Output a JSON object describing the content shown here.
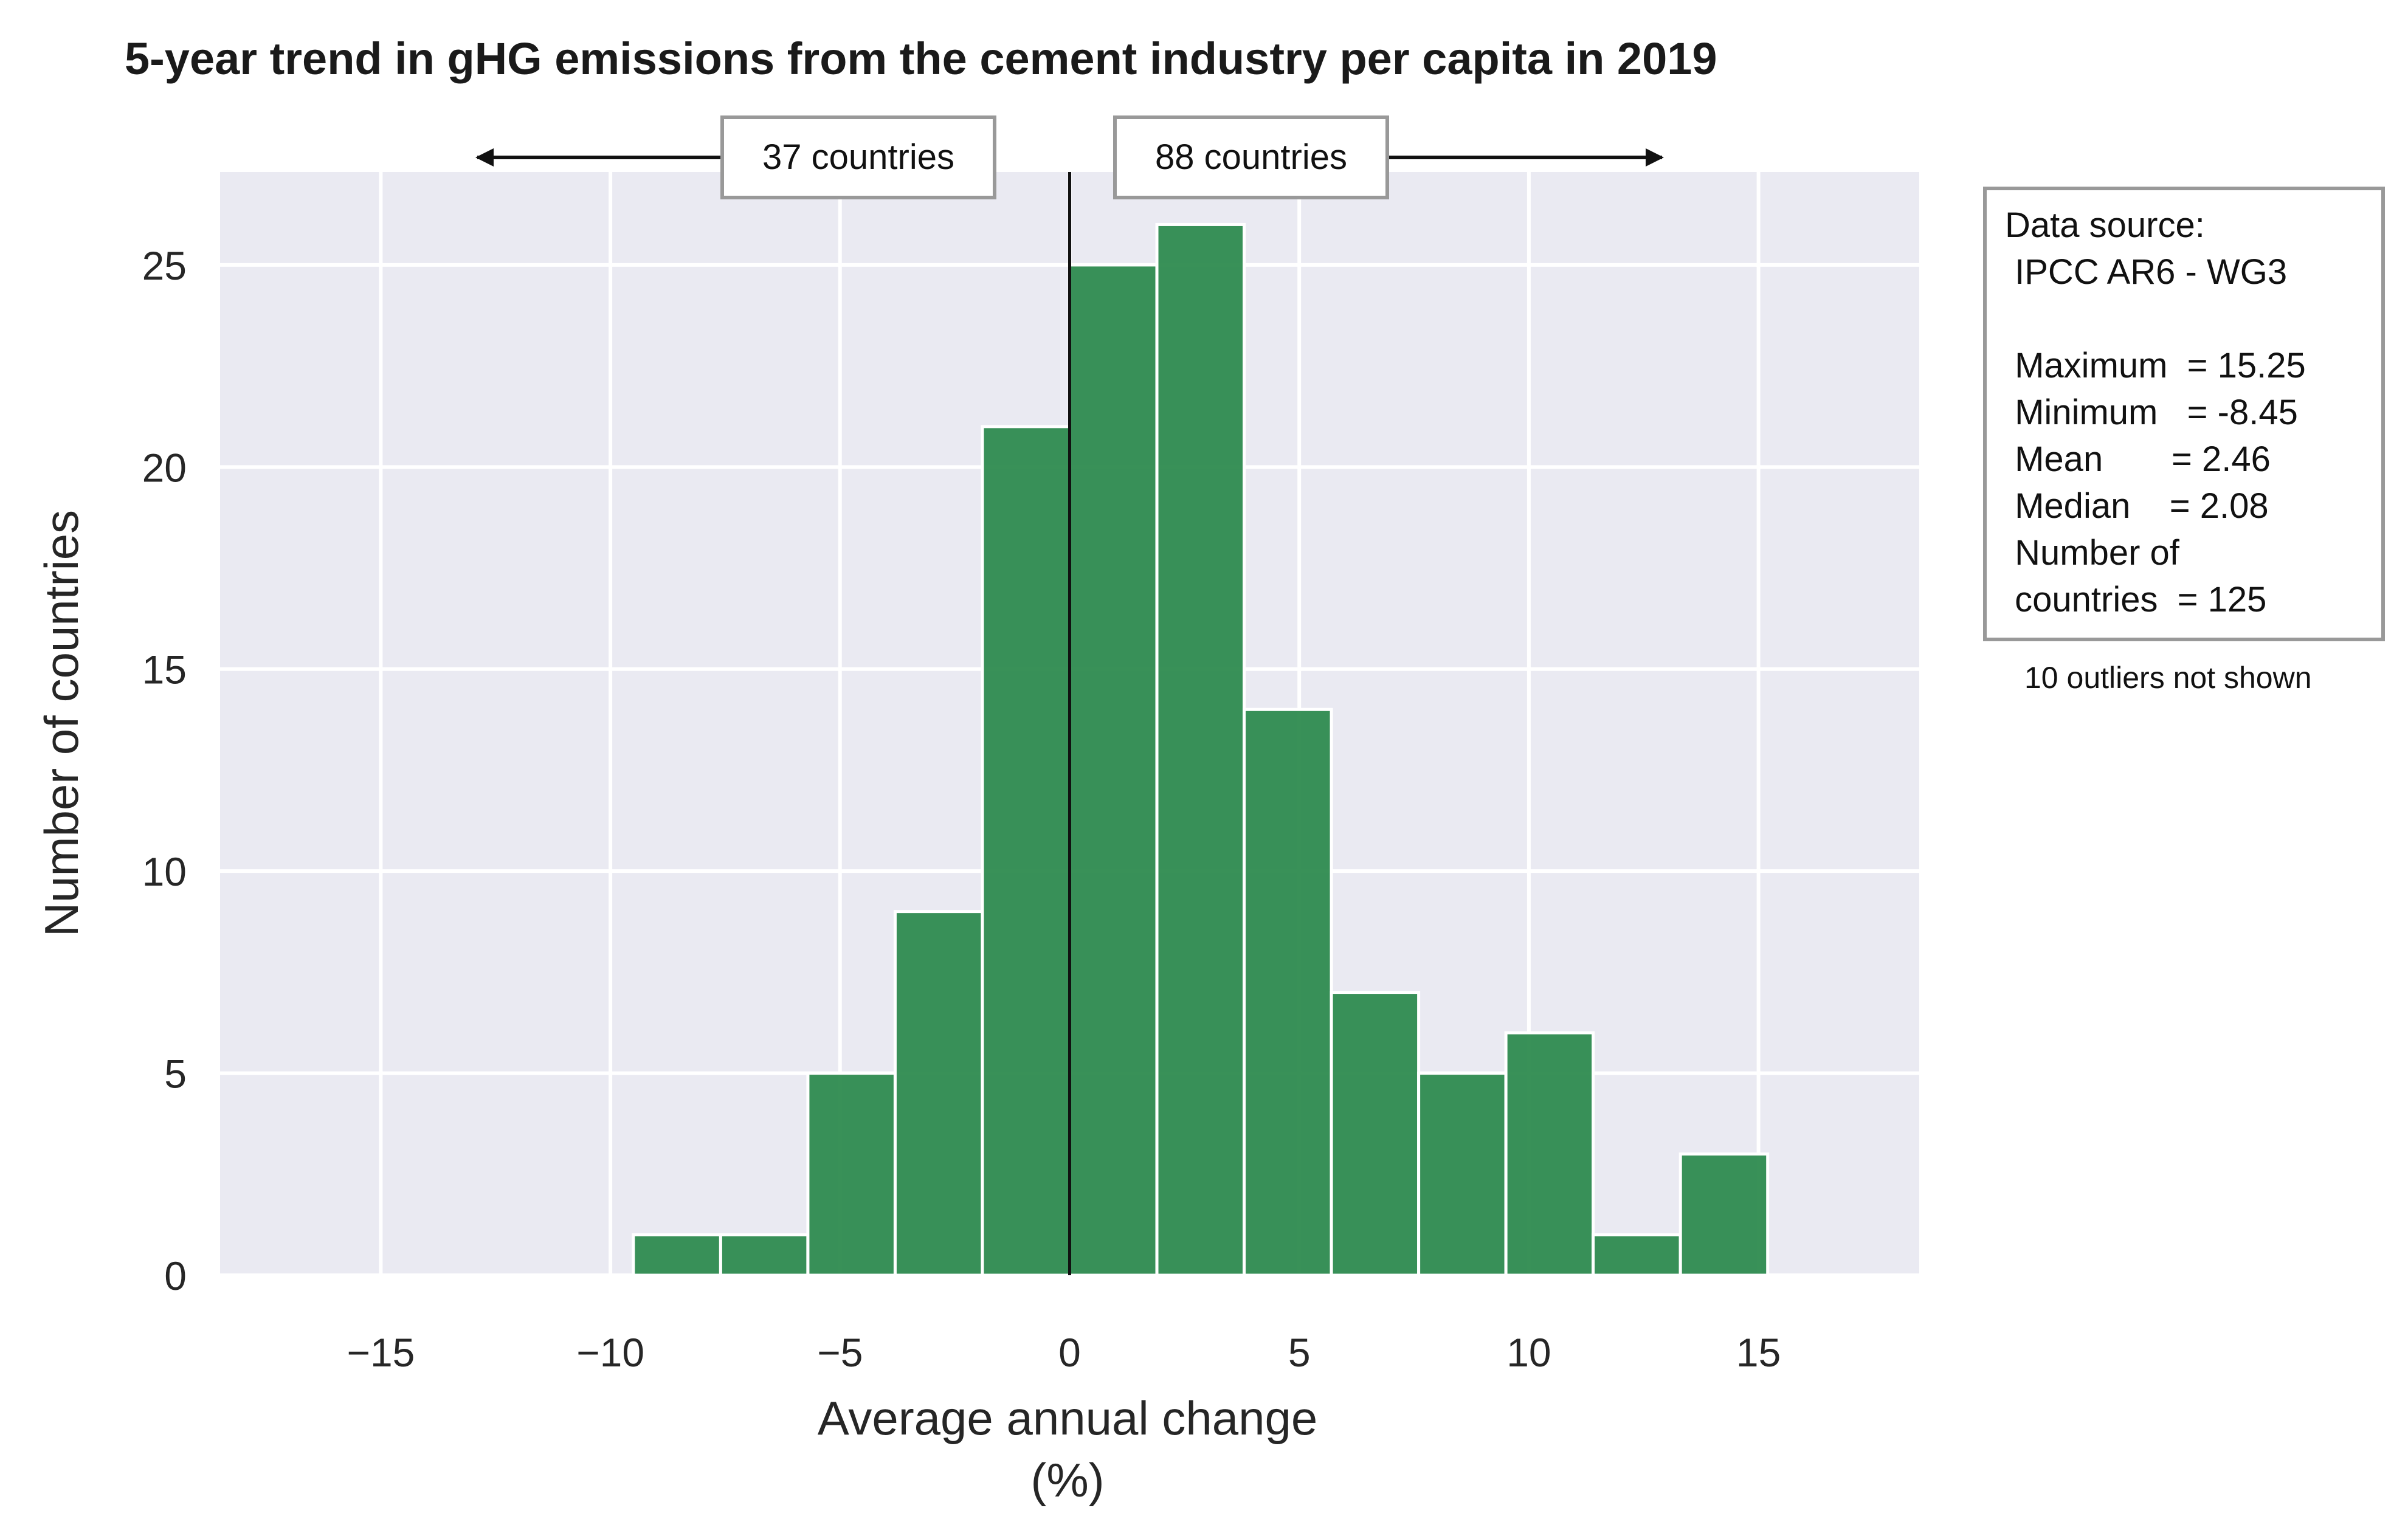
{
  "chart_data": {
    "type": "bar",
    "title": "5-year trend in gHG emissions from the cement industry per capita in 2019",
    "xlabel_line1": "Average annual change",
    "xlabel_line2": "(%)",
    "ylabel": "Number of countries",
    "xlim": [
      -18.5,
      18.5
    ],
    "ylim": [
      0,
      27.3
    ],
    "xticks": [
      -15,
      -10,
      -5,
      0,
      5,
      10,
      15
    ],
    "xtick_labels": [
      "−15",
      "−10",
      "−5",
      "0",
      "5",
      "10",
      "15"
    ],
    "yticks": [
      0,
      5,
      10,
      15,
      20,
      25
    ],
    "ytick_labels": [
      "0",
      "5",
      "10",
      "15",
      "20",
      "25"
    ],
    "grid": true,
    "bin_width": 1.9,
    "bins": [
      {
        "start": -9.5,
        "count": 1
      },
      {
        "start": -7.6,
        "count": 1
      },
      {
        "start": -5.7,
        "count": 5
      },
      {
        "start": -3.8,
        "count": 9
      },
      {
        "start": -1.9,
        "count": 21
      },
      {
        "start": 0.0,
        "count": 25
      },
      {
        "start": 1.9,
        "count": 26
      },
      {
        "start": 3.8,
        "count": 14
      },
      {
        "start": 5.7,
        "count": 7
      },
      {
        "start": 7.6,
        "count": 5
      },
      {
        "start": 9.5,
        "count": 6
      },
      {
        "start": 11.4,
        "count": 1
      },
      {
        "start": 13.3,
        "count": 3
      }
    ],
    "reference_line_x": 0,
    "left_annotation": "37 countries",
    "right_annotation": "88 countries",
    "left_arrow_to_x": -12.9,
    "right_arrow_to_x": 12.9,
    "bar_color": "#2e8b4f",
    "background_color": "#eaeaf2"
  },
  "stats_box": {
    "lines": [
      "Data source:",
      " IPCC AR6 - WG3",
      "",
      " Maximum  = 15.25",
      " Minimum   = -8.45",
      " Mean       = 2.46",
      " Median    = 2.08",
      " Number of",
      " countries  = 125"
    ],
    "note": "10 outliers not shown"
  }
}
